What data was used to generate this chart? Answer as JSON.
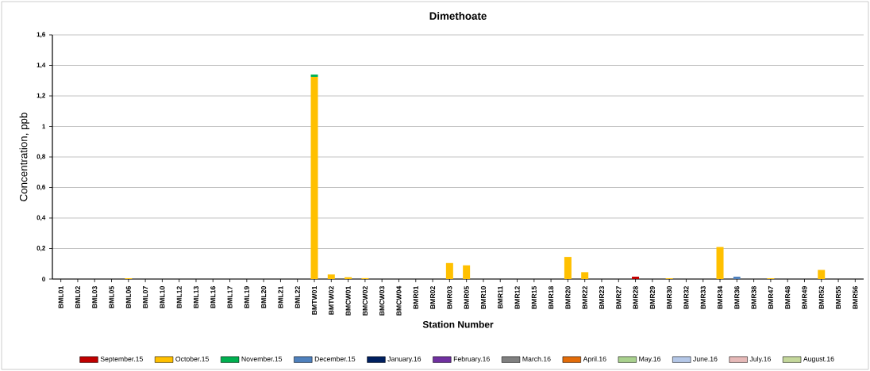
{
  "chart_data": {
    "type": "bar",
    "title": "Dimethoate",
    "xlabel": "Station Number",
    "ylabel": "Concentration, ppb",
    "categories": [
      "BML01",
      "BML02",
      "BML03",
      "BML05",
      "BML06",
      "BML07",
      "BML10",
      "BML12",
      "BML13",
      "BML16",
      "BML17",
      "BML19",
      "BML20",
      "BML21",
      "BML22",
      "BMTW01",
      "BMTW02",
      "BMCW01",
      "BMCW02",
      "BMCW03",
      "BMCW04",
      "BMR01",
      "BMR02",
      "BMR03",
      "BMR05",
      "BMR10",
      "BMR11",
      "BMR12",
      "BMR15",
      "BMR18",
      "BMR20",
      "BMR22",
      "BMR23",
      "BMR27",
      "BMR28",
      "BMR29",
      "BMR30",
      "BMR32",
      "BMR33",
      "BMR34",
      "BMR36",
      "BMR38",
      "BMR47",
      "BMR48",
      "BMR49",
      "BMR52",
      "BMR55",
      "BMR56"
    ],
    "stacked": true,
    "series": [
      {
        "name": "September.15",
        "color": "#c00000",
        "values": [
          0,
          0,
          0,
          0,
          0,
          0,
          0,
          0,
          0,
          0,
          0,
          0,
          0,
          0,
          0,
          0,
          0,
          0,
          0,
          0,
          0,
          0,
          0,
          0,
          0,
          0,
          0,
          0,
          0,
          0,
          0,
          0,
          0,
          0,
          0.015,
          0,
          0,
          0,
          0,
          0,
          0,
          0,
          0,
          0,
          0,
          0,
          0,
          0
        ]
      },
      {
        "name": "October.15",
        "color": "#ffc000",
        "values": [
          0,
          0,
          0,
          0,
          0.005,
          0,
          0,
          0,
          0,
          0,
          0,
          0,
          0,
          0,
          0,
          1.325,
          0.03,
          0.012,
          0.006,
          0,
          0,
          0,
          0,
          0.105,
          0.09,
          0,
          0,
          0,
          0,
          0,
          0.145,
          0.045,
          0,
          0,
          0,
          0,
          0.005,
          0,
          0,
          0.21,
          0,
          0,
          0.005,
          0,
          0,
          0.06,
          0,
          0
        ]
      },
      {
        "name": "November.15",
        "color": "#00b050",
        "values": [
          0,
          0,
          0,
          0,
          0,
          0,
          0,
          0,
          0,
          0,
          0,
          0,
          0,
          0,
          0,
          0.015,
          0,
          0,
          0,
          0,
          0,
          0,
          0,
          0,
          0,
          0,
          0,
          0,
          0,
          0,
          0,
          0,
          0,
          0,
          0,
          0,
          0,
          0,
          0,
          0,
          0,
          0,
          0,
          0,
          0,
          0,
          0,
          0
        ]
      },
      {
        "name": "December.15",
        "color": "#4f81bd",
        "values": [
          0,
          0,
          0,
          0,
          0,
          0,
          0,
          0,
          0,
          0,
          0,
          0,
          0,
          0,
          0,
          0,
          0,
          0,
          0,
          0,
          0,
          0,
          0,
          0,
          0,
          0,
          0,
          0,
          0,
          0,
          0,
          0,
          0,
          0,
          0,
          0,
          0,
          0,
          0,
          0,
          0.015,
          0,
          0,
          0,
          0,
          0,
          0,
          0
        ]
      },
      {
        "name": "January.16",
        "color": "#002060",
        "values": [
          0,
          0,
          0,
          0,
          0,
          0,
          0,
          0,
          0,
          0,
          0,
          0,
          0,
          0,
          0,
          0,
          0,
          0,
          0,
          0,
          0,
          0,
          0,
          0,
          0,
          0,
          0,
          0,
          0,
          0,
          0,
          0,
          0,
          0,
          0,
          0,
          0,
          0,
          0,
          0,
          0,
          0,
          0,
          0,
          0,
          0,
          0,
          0
        ]
      },
      {
        "name": "February.16",
        "color": "#7030a0",
        "values": [
          0,
          0,
          0,
          0,
          0,
          0,
          0,
          0,
          0,
          0,
          0,
          0,
          0,
          0,
          0,
          0,
          0,
          0,
          0,
          0,
          0,
          0,
          0,
          0,
          0,
          0,
          0,
          0,
          0,
          0,
          0,
          0,
          0,
          0,
          0,
          0,
          0,
          0,
          0,
          0,
          0,
          0,
          0,
          0,
          0,
          0,
          0,
          0
        ]
      },
      {
        "name": "March.16",
        "color": "#808080",
        "values": [
          0,
          0,
          0,
          0,
          0,
          0,
          0,
          0,
          0,
          0,
          0,
          0,
          0,
          0,
          0,
          0,
          0,
          0,
          0,
          0,
          0,
          0,
          0,
          0,
          0,
          0,
          0,
          0,
          0,
          0,
          0,
          0,
          0,
          0,
          0,
          0,
          0,
          0,
          0,
          0,
          0,
          0,
          0,
          0,
          0,
          0,
          0,
          0
        ]
      },
      {
        "name": "April.16",
        "color": "#e36c09",
        "values": [
          0,
          0,
          0,
          0,
          0,
          0,
          0,
          0,
          0,
          0,
          0,
          0,
          0,
          0,
          0,
          0,
          0,
          0,
          0,
          0,
          0,
          0,
          0,
          0,
          0,
          0,
          0,
          0,
          0,
          0,
          0,
          0,
          0,
          0,
          0,
          0,
          0,
          0,
          0,
          0,
          0,
          0,
          0,
          0,
          0,
          0,
          0,
          0
        ]
      },
      {
        "name": "May.16",
        "color": "#a9d18e",
        "values": [
          0,
          0,
          0,
          0,
          0,
          0,
          0,
          0,
          0,
          0,
          0,
          0,
          0,
          0,
          0,
          0,
          0,
          0,
          0,
          0,
          0,
          0,
          0,
          0,
          0,
          0,
          0,
          0,
          0,
          0,
          0,
          0,
          0,
          0,
          0,
          0,
          0,
          0,
          0,
          0,
          0,
          0,
          0,
          0,
          0,
          0,
          0,
          0
        ]
      },
      {
        "name": "June.16",
        "color": "#b4c7e7",
        "values": [
          0,
          0,
          0,
          0,
          0,
          0,
          0,
          0,
          0,
          0,
          0,
          0,
          0,
          0,
          0,
          0,
          0,
          0,
          0,
          0,
          0,
          0,
          0,
          0,
          0,
          0,
          0,
          0,
          0,
          0,
          0,
          0,
          0,
          0,
          0,
          0,
          0,
          0,
          0,
          0,
          0,
          0,
          0,
          0,
          0,
          0,
          0,
          0
        ]
      },
      {
        "name": "July.16",
        "color": "#e6b9b8",
        "values": [
          0,
          0,
          0,
          0,
          0,
          0,
          0,
          0,
          0,
          0,
          0,
          0,
          0,
          0,
          0,
          0,
          0,
          0,
          0,
          0,
          0,
          0,
          0,
          0,
          0,
          0,
          0,
          0,
          0,
          0,
          0,
          0,
          0,
          0,
          0,
          0,
          0,
          0,
          0,
          0,
          0,
          0,
          0,
          0,
          0,
          0,
          0,
          0
        ]
      },
      {
        "name": "August.16",
        "color": "#c4d79b",
        "values": [
          0,
          0,
          0,
          0,
          0,
          0,
          0,
          0,
          0,
          0,
          0,
          0,
          0,
          0,
          0,
          0,
          0,
          0,
          0,
          0,
          0,
          0,
          0,
          0,
          0,
          0,
          0,
          0,
          0,
          0,
          0,
          0,
          0,
          0,
          0,
          0,
          0,
          0,
          0,
          0,
          0,
          0,
          0,
          0,
          0,
          0,
          0,
          0
        ]
      }
    ],
    "ylim": [
      0,
      1.6
    ],
    "yticks": [
      0,
      {
        "value": 0.2,
        "label": "0,2"
      },
      {
        "value": 0.4,
        "label": "0,4"
      },
      {
        "value": 0.6,
        "label": "0,6"
      },
      {
        "value": 0.8,
        "label": "0,8"
      },
      1,
      {
        "value": 1.2,
        "label": "1,2"
      },
      {
        "value": 1.4,
        "label": "1,4"
      },
      {
        "value": 1.6,
        "label": "1,6"
      }
    ],
    "grid": "y",
    "legend": "bottom"
  }
}
